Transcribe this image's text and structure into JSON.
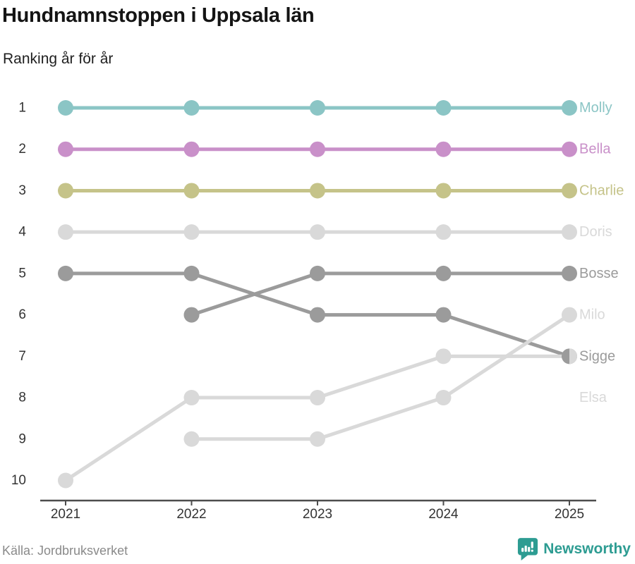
{
  "header": {
    "title": "Hundnamnstoppen i Uppsala län",
    "subtitle": "Ranking år för år"
  },
  "footer": {
    "source": "Källa: Jordbruksverket",
    "brand": "Newsworthy",
    "brand_color": "#2d9c92"
  },
  "chart_data": {
    "type": "line",
    "variant": "bump-ranking",
    "title": "Hundnamnstoppen i Uppsala län",
    "subtitle": "Ranking år för år",
    "x": [
      "2021",
      "2022",
      "2023",
      "2024",
      "2025"
    ],
    "y_ticks": [
      "1",
      "2",
      "3",
      "4",
      "5",
      "6",
      "7",
      "8",
      "9",
      "10"
    ],
    "y_axis_is_rank": true,
    "ylim": [
      1,
      10
    ],
    "grid": false,
    "legend_position": "right-of-line-end",
    "axis_color": "#4d4d4d",
    "tick_label_color": "#333333",
    "series": [
      {
        "name": "Molly",
        "color": "#8bc5c5",
        "values": [
          1,
          1,
          1,
          1,
          1
        ]
      },
      {
        "name": "Bella",
        "color": "#c990c9",
        "values": [
          2,
          2,
          2,
          2,
          2
        ]
      },
      {
        "name": "Charlie",
        "color": "#c5c389",
        "values": [
          3,
          3,
          3,
          3,
          3
        ]
      },
      {
        "name": "Doris",
        "color": "#d9d9d9",
        "values": [
          4,
          4,
          4,
          4,
          4
        ]
      },
      {
        "name": "Bosse",
        "color": "#9b9b9b",
        "values": [
          null,
          6,
          5,
          5,
          5
        ]
      },
      {
        "name": "Sigge",
        "color": "#9b9b9b",
        "values": [
          5,
          5,
          6,
          6,
          7
        ]
      },
      {
        "name": "Elsa",
        "color": "#d9d9d9",
        "values": [
          10,
          8,
          8,
          7,
          7
        ],
        "label_row": 8
      },
      {
        "name": "Milo",
        "color": "#d9d9d9",
        "values": [
          null,
          9,
          9,
          8,
          6
        ]
      }
    ]
  }
}
